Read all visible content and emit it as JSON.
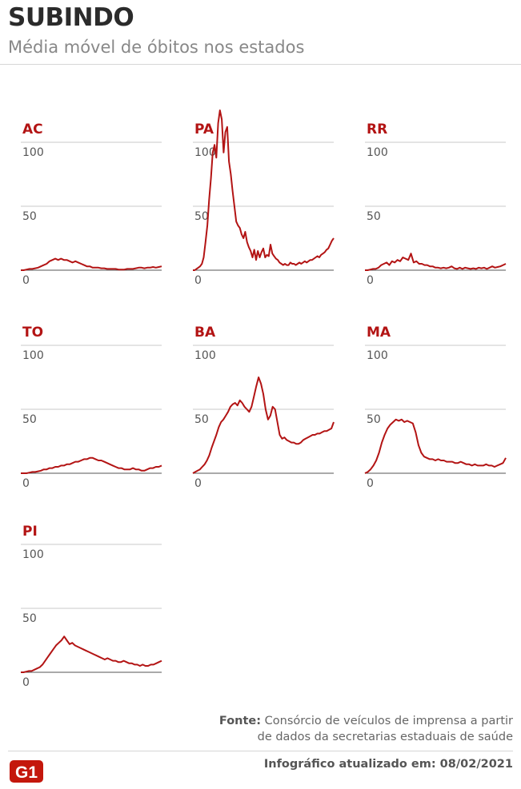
{
  "title": "SUBINDO",
  "subtitle": "Média móvel de óbitos nos estados",
  "source_label": "Fonte:",
  "source_line1": "Consórcio de veículos de imprensa a partir",
  "source_line2": "de dados da secretarias estaduais de saúde",
  "updated": "Infográfico atualizado em: 08/02/2021",
  "logo_text": "G1",
  "colors": {
    "line": "#b31414",
    "grid": "#c8c8c8",
    "axis": "#555555",
    "logo": "#c4170c"
  },
  "chart_data": [
    {
      "type": "line",
      "title": "AC",
      "ylim": [
        0,
        100
      ],
      "yticks": [
        "100",
        "50",
        "0"
      ],
      "series": [
        {
          "values": [
            0,
            0,
            0.5,
            1,
            1,
            1.5,
            2,
            3,
            4,
            5,
            7,
            8,
            9,
            8,
            9,
            8,
            8,
            7,
            6,
            7,
            6,
            5,
            4,
            3,
            3,
            2,
            2,
            2,
            1.5,
            1.5,
            1,
            1,
            1,
            1,
            0.5,
            0.5,
            0.5,
            1,
            1,
            1,
            1.5,
            2,
            2,
            1.5,
            2,
            2,
            2.5,
            2,
            2.5,
            3
          ]
        }
      ]
    },
    {
      "type": "line",
      "title": "PA",
      "ylim": [
        0,
        100
      ],
      "yticks": [
        "100",
        "50",
        "0"
      ],
      "series": [
        {
          "values": [
            0,
            0,
            1,
            2,
            3,
            5,
            10,
            22,
            35,
            55,
            72,
            92,
            98,
            88,
            115,
            125,
            118,
            92,
            108,
            112,
            85,
            75,
            62,
            50,
            38,
            35,
            33,
            28,
            25,
            30,
            22,
            18,
            15,
            10,
            16,
            8,
            15,
            10,
            14,
            17,
            10,
            12,
            11,
            20,
            13,
            11,
            9,
            8,
            6,
            5,
            4,
            5,
            4,
            4,
            6,
            5,
            5,
            4,
            5,
            6,
            5,
            6,
            7,
            6,
            7,
            8,
            8,
            9,
            10,
            11,
            10,
            12,
            13,
            14,
            16,
            17,
            20,
            23,
            25
          ]
        }
      ]
    },
    {
      "type": "line",
      "title": "RR",
      "ylim": [
        0,
        100
      ],
      "yticks": [
        "100",
        "50",
        "0"
      ],
      "series": [
        {
          "values": [
            0,
            0,
            0.5,
            1,
            1,
            2,
            4,
            5,
            6,
            4,
            7,
            6,
            8,
            7,
            10,
            9,
            8,
            13,
            6,
            7,
            5,
            5,
            4,
            4,
            3,
            3,
            2,
            2,
            1.5,
            2,
            1.5,
            2,
            3,
            1.5,
            1,
            2,
            1,
            2,
            1.5,
            1,
            1.5,
            1,
            2,
            1.5,
            2,
            1,
            2,
            3,
            2,
            2.5,
            3,
            4,
            5
          ]
        }
      ]
    },
    {
      "type": "line",
      "title": "TO",
      "ylim": [
        0,
        100
      ],
      "yticks": [
        "100",
        "50",
        "0"
      ],
      "series": [
        {
          "values": [
            0,
            0,
            0,
            0.5,
            1,
            1,
            1.5,
            2,
            3,
            3,
            4,
            4,
            5,
            5,
            6,
            6,
            7,
            7,
            8,
            9,
            9,
            10,
            11,
            11,
            12,
            12,
            11,
            10,
            10,
            9,
            8,
            7,
            6,
            5,
            4,
            4,
            3,
            3,
            3,
            4,
            3,
            3,
            2,
            2,
            3,
            4,
            4,
            5,
            5,
            6
          ]
        }
      ]
    },
    {
      "type": "line",
      "title": "BA",
      "ylim": [
        0,
        100
      ],
      "yticks": [
        "100",
        "50",
        "0"
      ],
      "series": [
        {
          "values": [
            0,
            1,
            2,
            3,
            5,
            7,
            10,
            14,
            20,
            25,
            30,
            36,
            40,
            42,
            45,
            48,
            52,
            54,
            55,
            53,
            57,
            55,
            52,
            50,
            48,
            52,
            60,
            68,
            75,
            70,
            62,
            50,
            42,
            45,
            52,
            50,
            40,
            30,
            27,
            28,
            26,
            25,
            24,
            24,
            23,
            23,
            24,
            26,
            27,
            28,
            29,
            30,
            30,
            31,
            31,
            32,
            33,
            33,
            34,
            35,
            40
          ]
        }
      ]
    },
    {
      "type": "line",
      "title": "MA",
      "ylim": [
        0,
        100
      ],
      "yticks": [
        "100",
        "50",
        "0"
      ],
      "series": [
        {
          "values": [
            0,
            1,
            3,
            6,
            10,
            16,
            24,
            30,
            35,
            38,
            40,
            42,
            41,
            42,
            40,
            41,
            40,
            39,
            32,
            22,
            16,
            13,
            12,
            11,
            11,
            10,
            11,
            10,
            10,
            9,
            9,
            9,
            8,
            8,
            9,
            8,
            7,
            7,
            6,
            7,
            6,
            6,
            6,
            7,
            6,
            6,
            5,
            6,
            7,
            8,
            12
          ]
        }
      ]
    },
    {
      "type": "line",
      "title": "PI",
      "ylim": [
        0,
        100
      ],
      "yticks": [
        "100",
        "50",
        "0"
      ],
      "series": [
        {
          "values": [
            0,
            0,
            0.5,
            1,
            1,
            2,
            3,
            4,
            6,
            9,
            12,
            15,
            18,
            21,
            23,
            25,
            28,
            25,
            22,
            23,
            21,
            20,
            19,
            18,
            17,
            16,
            15,
            14,
            13,
            12,
            11,
            10,
            11,
            10,
            9,
            9,
            8,
            8,
            9,
            8,
            7,
            7,
            6,
            6,
            5,
            6,
            5,
            5,
            6,
            6,
            7,
            8,
            9
          ]
        }
      ]
    }
  ]
}
